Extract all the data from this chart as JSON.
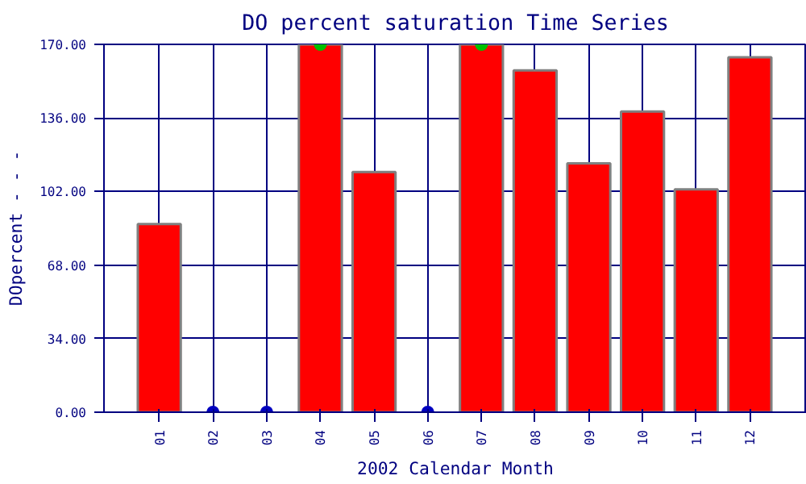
{
  "chart_data": {
    "type": "bar",
    "title": "DO percent saturation Time Series",
    "xlabel": "2002 Calendar Month",
    "ylabel": "DOpercent - - -",
    "categories": [
      "01",
      "02",
      "03",
      "04",
      "05",
      "06",
      "07",
      "08",
      "09",
      "10",
      "11",
      "12"
    ],
    "series": [
      {
        "color": "#ff0000",
        "values": [
          87,
          null,
          null,
          170,
          111,
          null,
          170,
          158,
          115,
          139,
          103,
          164
        ]
      },
      {
        "type": "scatter",
        "color": "#00c000",
        "marker": "circle",
        "values": [
          null,
          null,
          null,
          170,
          null,
          null,
          170,
          null,
          null,
          null,
          null,
          null
        ]
      },
      {
        "type": "scatter",
        "color": "#0000c0",
        "marker": "circle",
        "values": [
          null,
          0,
          0,
          null,
          null,
          0,
          null,
          null,
          null,
          null,
          null,
          null
        ]
      }
    ],
    "ylim": [
      0,
      170
    ],
    "yticks": [
      {
        "value": 0,
        "label": "0.00"
      },
      {
        "value": 34,
        "label": "34.00"
      },
      {
        "value": 68,
        "label": "68.00"
      },
      {
        "value": 102,
        "label": "102.00"
      },
      {
        "value": 136,
        "label": "136.00"
      },
      {
        "value": 170,
        "label": "170.00"
      }
    ],
    "grid": true
  }
}
